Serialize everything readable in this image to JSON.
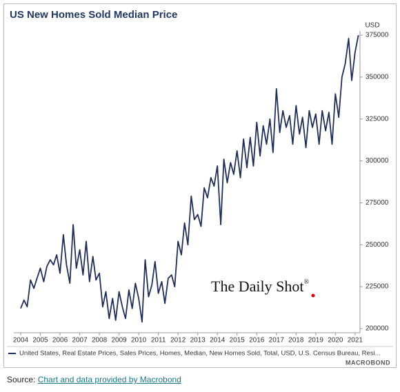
{
  "chart_data": {
    "type": "line",
    "title": "US New Homes Sold Median Price",
    "y_unit": "USD",
    "watermark": "The Daily Shot",
    "watermark_mark": "®",
    "brand": "MACROBOND",
    "source_label": "Source:",
    "source_link": "Chart and data provided by Macrobond",
    "xlim": [
      2003.65,
      2021.25
    ],
    "xticks": [
      2004,
      2005,
      2006,
      2007,
      2008,
      2009,
      2010,
      2011,
      2012,
      2013,
      2014,
      2015,
      2016,
      2017,
      2018,
      2019,
      2020,
      2021
    ],
    "ylim": [
      197500,
      377500
    ],
    "yticks": [
      200000,
      225000,
      250000,
      275000,
      300000,
      325000,
      350000,
      375000
    ],
    "grid": false,
    "x": [
      2004,
      2004.17,
      2004.33,
      2004.5,
      2004.67,
      2004.83,
      2005,
      2005.17,
      2005.33,
      2005.5,
      2005.67,
      2005.83,
      2006,
      2006.17,
      2006.33,
      2006.5,
      2006.67,
      2006.83,
      2007,
      2007.17,
      2007.33,
      2007.5,
      2007.67,
      2007.83,
      2008,
      2008.17,
      2008.33,
      2008.5,
      2008.67,
      2008.83,
      2009,
      2009.17,
      2009.33,
      2009.5,
      2009.67,
      2009.83,
      2010,
      2010.17,
      2010.33,
      2010.5,
      2010.67,
      2010.83,
      2011,
      2011.17,
      2011.33,
      2011.5,
      2011.67,
      2011.83,
      2012,
      2012.17,
      2012.33,
      2012.5,
      2012.67,
      2012.83,
      2013,
      2013.17,
      2013.33,
      2013.5,
      2013.67,
      2013.83,
      2014,
      2014.17,
      2014.33,
      2014.5,
      2014.67,
      2014.83,
      2015,
      2015.17,
      2015.33,
      2015.5,
      2015.67,
      2015.83,
      2016,
      2016.17,
      2016.33,
      2016.5,
      2016.67,
      2016.83,
      2017,
      2017.17,
      2017.33,
      2017.5,
      2017.67,
      2017.83,
      2018,
      2018.17,
      2018.33,
      2018.5,
      2018.67,
      2018.83,
      2019,
      2019.17,
      2019.33,
      2019.5,
      2019.67,
      2019.83,
      2020,
      2020.17,
      2020.33,
      2020.5,
      2020.67,
      2020.83,
      2021,
      2021.17
    ],
    "series": [
      {
        "name": "United States, Real Estate Prices, Sales Prices, Homes, Median, New Homes Sold, Total, USD, U.S. Census Bureau, Resi...",
        "color": "#1f2d5a",
        "values": [
          212000,
          217000,
          213000,
          229000,
          224000,
          230000,
          236000,
          228000,
          237000,
          241000,
          238000,
          244000,
          233000,
          256000,
          238000,
          227000,
          262000,
          236000,
          247000,
          232000,
          252000,
          228000,
          243000,
          229000,
          233000,
          213000,
          222000,
          206000,
          218000,
          205000,
          222000,
          213000,
          206000,
          223000,
          212000,
          227000,
          218000,
          204000,
          241000,
          219000,
          226000,
          240000,
          221000,
          228000,
          215000,
          230000,
          232000,
          225000,
          252000,
          244000,
          263000,
          250000,
          279000,
          265000,
          268000,
          261000,
          284000,
          278000,
          290000,
          285000,
          297000,
          262000,
          301000,
          287000,
          299000,
          292000,
          306000,
          290000,
          313000,
          296000,
          314000,
          297000,
          323000,
          303000,
          321000,
          310000,
          325000,
          305000,
          343000,
          317000,
          330000,
          320000,
          327000,
          310000,
          333000,
          316000,
          326000,
          308000,
          330000,
          320000,
          328000,
          310000,
          330000,
          318000,
          329000,
          310000,
          340000,
          326000,
          350000,
          358000,
          373000,
          348000,
          365000,
          375000
        ]
      }
    ]
  }
}
